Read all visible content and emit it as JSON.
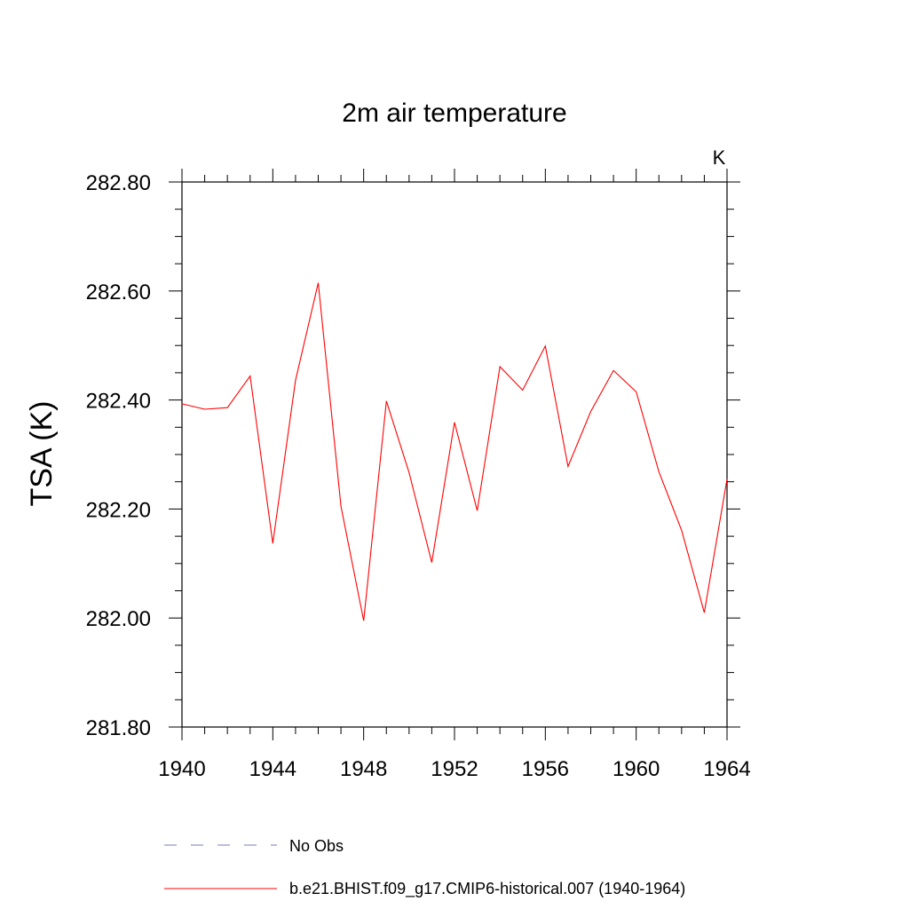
{
  "chart_data": {
    "type": "line",
    "title": "2m air temperature",
    "units_label": "K",
    "ylabel": "TSA  (K)",
    "xlabel": "",
    "xlim": [
      1940,
      1964
    ],
    "ylim": [
      281.8,
      282.8
    ],
    "x_ticks": [
      1940,
      1944,
      1948,
      1952,
      1956,
      1960,
      1964
    ],
    "x_tick_labels": [
      "1940",
      "1944",
      "1948",
      "1952",
      "1956",
      "1960",
      "1964"
    ],
    "y_ticks": [
      281.8,
      282.0,
      282.2,
      282.4,
      282.6,
      282.8
    ],
    "y_tick_labels": [
      "281.80",
      "282.00",
      "282.20",
      "282.40",
      "282.60",
      "282.80"
    ],
    "grid": false,
    "legend_position": "bottom",
    "series": [
      {
        "name": "b.e21.BHIST.f09_g17.CMIP6-historical.007 (1940-1964)",
        "color": "#ff0000",
        "dash": "solid",
        "x": [
          1940,
          1941,
          1942,
          1943,
          1944,
          1945,
          1946,
          1947,
          1948,
          1949,
          1950,
          1951,
          1952,
          1953,
          1954,
          1955,
          1956,
          1957,
          1958,
          1959,
          1960,
          1961,
          1962,
          1963,
          1964
        ],
        "y": [
          282.393,
          282.383,
          282.386,
          282.444,
          282.137,
          282.436,
          282.615,
          282.205,
          281.995,
          282.398,
          282.267,
          282.102,
          282.359,
          282.197,
          282.461,
          282.418,
          282.499,
          282.278,
          282.379,
          282.454,
          282.415,
          282.268,
          282.161,
          282.01,
          282.255
        ]
      }
    ],
    "legend": [
      {
        "label": "No Obs",
        "color": "#7777bb",
        "dash": "dashed"
      },
      {
        "label": "b.e21.BHIST.f09_g17.CMIP6-historical.007 (1940-1964)",
        "color": "#ff0000",
        "dash": "solid"
      }
    ]
  }
}
